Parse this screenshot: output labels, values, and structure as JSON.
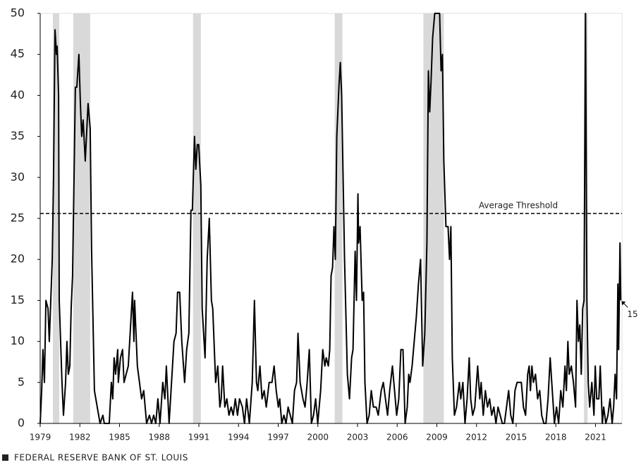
{
  "chart_data": {
    "type": "line",
    "x": [
      1979.0,
      1979.11,
      1979.21,
      1979.32,
      1979.43,
      1979.59,
      1979.69,
      1979.91,
      1980.01,
      1980.12,
      1980.23,
      1980.28,
      1980.39,
      1980.44,
      1980.65,
      1980.76,
      1980.92,
      1981.02,
      1981.13,
      1981.24,
      1981.34,
      1981.45,
      1981.56,
      1981.66,
      1981.77,
      1981.93,
      1982.04,
      1982.14,
      1982.25,
      1982.41,
      1982.62,
      1982.78,
      1982.89,
      1983.1,
      1983.42,
      1983.53,
      1983.74,
      1983.85,
      1984.22,
      1984.38,
      1984.49,
      1984.59,
      1984.7,
      1984.86,
      1984.91,
      1985.07,
      1985.23,
      1985.34,
      1985.66,
      1985.98,
      1986.09,
      1986.14,
      1986.35,
      1986.51,
      1986.67,
      1986.83,
      1987.05,
      1987.26,
      1987.42,
      1987.58,
      1987.74,
      1987.9,
      1988.06,
      1988.27,
      1988.43,
      1988.54,
      1988.75,
      1989.12,
      1989.28,
      1989.39,
      1989.55,
      1989.71,
      1989.92,
      1990.08,
      1990.24,
      1990.4,
      1990.51,
      1990.67,
      1990.77,
      1990.88,
      1990.99,
      1991.15,
      1991.25,
      1991.47,
      1991.63,
      1991.79,
      1991.95,
      1992.05,
      1992.27,
      1992.43,
      1992.59,
      1992.69,
      1992.8,
      1992.96,
      1993.12,
      1993.28,
      1993.44,
      1993.6,
      1993.76,
      1993.92,
      1994.08,
      1994.29,
      1994.45,
      1994.61,
      1994.82,
      1995.04,
      1995.2,
      1995.36,
      1995.46,
      1995.62,
      1995.78,
      1995.94,
      1996.1,
      1996.32,
      1996.53,
      1996.69,
      1996.85,
      1997.01,
      1997.12,
      1997.27,
      1997.43,
      1997.59,
      1997.75,
      1997.91,
      1998.07,
      1998.23,
      1998.39,
      1998.5,
      1998.66,
      1998.87,
      1999.03,
      1999.19,
      1999.35,
      1999.51,
      1999.67,
      1999.83,
      1999.99,
      2000.21,
      2000.37,
      2000.53,
      2000.63,
      2000.79,
      2000.9,
      2001.0,
      2001.11,
      2001.22,
      2001.32,
      2001.43,
      2001.59,
      2001.7,
      2001.8,
      2002.02,
      2002.23,
      2002.39,
      2002.55,
      2002.66,
      2002.82,
      2002.92,
      2003.03,
      2003.08,
      2003.19,
      2003.35,
      2003.46,
      2003.56,
      2003.72,
      2003.88,
      2004.04,
      2004.2,
      2004.41,
      2004.57,
      2004.79,
      2004.95,
      2005.11,
      2005.27,
      2005.43,
      2005.64,
      2005.8,
      2005.96,
      2006.12,
      2006.28,
      2006.44,
      2006.6,
      2006.76,
      2006.87,
      2006.97,
      2007.13,
      2007.29,
      2007.45,
      2007.61,
      2007.77,
      2007.93,
      2008.09,
      2008.25,
      2008.36,
      2008.46,
      2008.57,
      2008.68,
      2008.84,
      2009.21,
      2009.32,
      2009.42,
      2009.53,
      2009.69,
      2009.85,
      2009.96,
      2010.06,
      2010.17,
      2010.33,
      2010.49,
      2010.7,
      2010.81,
      2010.97,
      2011.13,
      2011.29,
      2011.45,
      2011.56,
      2011.71,
      2011.87,
      2012.09,
      2012.25,
      2012.35,
      2012.51,
      2012.67,
      2012.83,
      2012.99,
      2013.15,
      2013.31,
      2013.47,
      2013.63,
      2013.79,
      2013.95,
      2014.11,
      2014.27,
      2014.43,
      2014.59,
      2014.75,
      2014.91,
      2015.07,
      2015.39,
      2015.55,
      2015.71,
      2015.87,
      2015.98,
      2016.08,
      2016.19,
      2016.3,
      2016.46,
      2016.62,
      2016.78,
      2016.93,
      2017.09,
      2017.25,
      2017.41,
      2017.57,
      2017.73,
      2017.89,
      2018.05,
      2018.21,
      2018.37,
      2018.53,
      2018.69,
      2018.8,
      2018.91,
      2019.01,
      2019.17,
      2019.33,
      2019.49,
      2019.6,
      2019.71,
      2019.81,
      2019.92,
      2020.03,
      2020.13,
      2020.24,
      2020.35,
      2020.45,
      2020.56,
      2020.72,
      2020.88,
      2020.98,
      2021.09,
      2021.25,
      2021.36,
      2021.52,
      2021.62,
      2021.78,
      2021.94,
      2022.1,
      2022.26,
      2022.37,
      2022.48,
      2022.59,
      2022.69,
      2022.75,
      2022.85,
      2022.91
    ],
    "values": [
      0,
      4,
      9,
      5,
      15,
      14,
      10,
      20,
      30,
      48,
      45,
      46,
      40,
      15,
      5,
      1,
      5,
      10,
      6,
      7,
      14,
      18,
      30,
      41,
      41,
      45,
      39,
      35,
      37,
      32,
      39,
      36,
      21,
      4,
      1,
      0,
      1,
      0,
      0,
      5,
      3,
      8,
      6,
      9,
      5,
      8,
      9,
      5,
      7,
      16,
      10,
      15,
      7,
      5,
      3,
      4,
      0,
      1,
      0,
      1,
      0,
      3,
      0,
      5,
      3,
      7,
      0,
      10,
      11,
      16,
      16,
      10,
      5,
      9,
      11,
      26,
      26,
      35,
      31,
      34,
      34,
      29,
      14,
      8,
      20,
      25,
      15,
      14,
      5,
      7,
      2,
      3,
      7,
      2,
      3,
      1,
      2,
      1,
      3,
      1,
      3,
      2,
      0,
      3,
      0,
      5,
      15,
      5,
      4,
      7,
      3,
      4,
      2,
      5,
      5,
      7,
      4,
      2,
      3,
      0,
      1,
      0,
      2,
      1,
      0,
      4,
      5,
      11,
      5,
      3,
      2,
      5,
      9,
      0,
      1,
      3,
      0,
      4,
      9,
      7,
      8,
      7,
      9,
      18,
      19,
      24,
      20,
      35,
      41,
      44,
      40,
      20,
      6,
      3,
      8,
      9,
      21,
      15,
      28,
      22,
      24,
      15,
      16,
      5,
      0,
      1,
      4,
      2,
      2,
      1,
      4,
      5,
      3,
      1,
      4,
      7,
      4,
      1,
      3,
      9,
      9,
      0,
      2,
      6,
      5,
      7,
      10,
      13,
      17,
      20,
      7,
      11,
      22,
      43,
      38,
      42,
      47,
      50,
      50,
      43,
      45,
      32,
      24,
      24,
      20,
      24,
      8,
      1,
      2,
      5,
      3,
      5,
      0,
      3,
      8,
      3,
      1,
      2,
      7,
      3,
      5,
      1,
      4,
      2,
      3,
      1,
      2,
      0,
      2,
      1,
      0,
      0,
      2,
      4,
      1,
      0,
      4,
      5,
      5,
      2,
      1,
      6,
      7,
      4,
      7,
      5,
      6,
      3,
      4,
      1,
      0,
      0,
      3,
      8,
      4,
      0,
      2,
      0,
      4,
      2,
      7,
      4,
      10,
      6,
      7,
      5,
      2,
      15,
      10,
      12,
      6,
      14,
      15,
      50,
      15,
      5,
      2,
      5,
      1,
      7,
      3,
      3,
      7,
      0,
      2,
      0,
      1,
      3,
      0,
      2,
      6,
      3,
      17,
      9,
      22,
      15
    ],
    "color": "#000000",
    "xlim": [
      1979,
      2023
    ],
    "xticks": [
      1979,
      1982,
      1985,
      1988,
      1991,
      1994,
      1997,
      2000,
      2003,
      2006,
      2009,
      2012,
      2015,
      2018,
      2021
    ],
    "ylim": [
      0,
      50
    ],
    "yticks": [
      0,
      5,
      10,
      15,
      20,
      25,
      30,
      35,
      40,
      45,
      50
    ],
    "shaded_periods": [
      [
        1979.96,
        1980.44
      ],
      [
        1981.5,
        1982.78
      ],
      [
        1990.56,
        1991.15
      ],
      [
        2001.27,
        2001.86
      ],
      [
        2007.98,
        2009.53
      ],
      [
        2020.13,
        2020.4
      ]
    ],
    "shade_color": "#d9d9d9",
    "threshold": {
      "value": 25.6,
      "label": "Average Threshold"
    },
    "end_label": "15",
    "source": "FEDERAL RESERVE BANK OF ST. LOUIS"
  }
}
